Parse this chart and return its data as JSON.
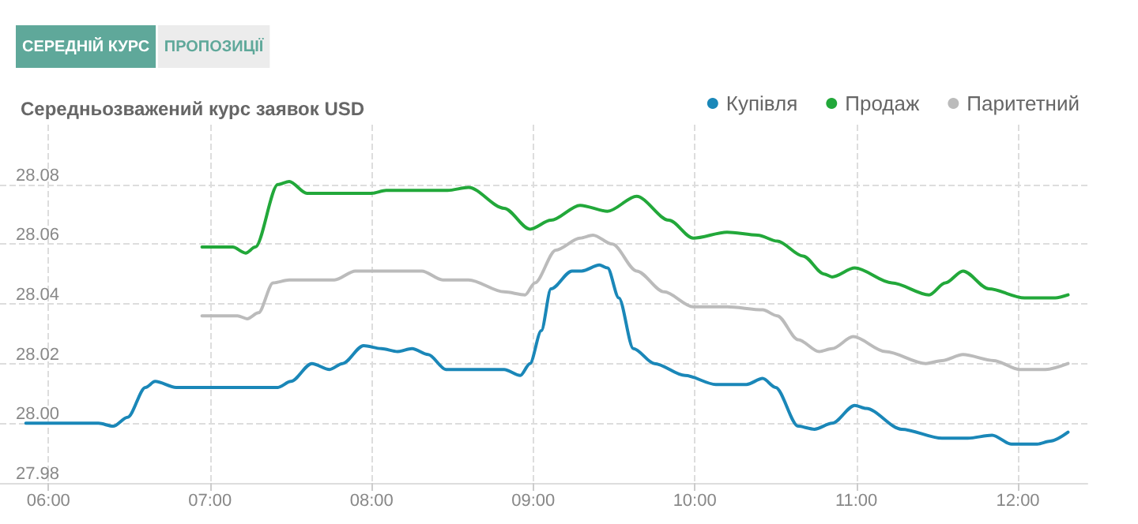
{
  "chart_data": {
    "type": "line",
    "title": "Середньозважений курс заявок USD",
    "annotations": [
      "СЕРЕДНІЙ КУРС",
      "ПРОПОЗИЦІЇ"
    ],
    "xlim": [
      5.7,
      12.43
    ],
    "xticks": [
      {
        "value": 6,
        "label": "06:00"
      },
      {
        "value": 7,
        "label": "07:00"
      },
      {
        "value": 8,
        "label": "08:00"
      },
      {
        "value": 9,
        "label": "09:00"
      },
      {
        "value": 10,
        "label": "10:00"
      },
      {
        "value": 11,
        "label": "11:00"
      },
      {
        "value": 12,
        "label": "12:00"
      }
    ],
    "ylim": [
      27.98,
      28.1
    ],
    "yticks": [
      {
        "value": 27.98,
        "label": "27.98"
      },
      {
        "value": 28,
        "label": "28.00"
      },
      {
        "value": 28.02,
        "label": "28.02"
      },
      {
        "value": 28.04,
        "label": "28.04"
      },
      {
        "value": 28.06,
        "label": "28.06"
      },
      {
        "value": 28.08,
        "label": "28.08"
      }
    ],
    "grid": true,
    "legend": "top right",
    "marker": "none",
    "line_style": "solid",
    "series": [
      {
        "name": "Купівля",
        "color": "#1a87b8",
        "x": [
          5.86,
          6.31,
          6.4,
          6.49,
          6.6,
          6.66,
          6.79,
          7.36,
          7.42,
          7.5,
          7.63,
          7.74,
          7.82,
          7.95,
          8.06,
          8.16,
          8.25,
          8.35,
          8.46,
          8.57,
          8.82,
          8.92,
          8.98,
          9.05,
          9.11,
          9.24,
          9.3,
          9.41,
          9.46,
          9.53,
          9.62,
          9.75,
          9.94,
          10.13,
          10.32,
          10.42,
          10.5,
          10.64,
          10.74,
          10.85,
          10.99,
          11.06,
          11.28,
          11.53,
          11.69,
          11.84,
          11.96,
          12.12,
          12.2,
          12.31
        ],
        "values": [
          28.0,
          28.0,
          27.999,
          28.002,
          28.012,
          28.014,
          28.012,
          28.012,
          28.012,
          28.014,
          28.02,
          28.018,
          28.02,
          28.026,
          28.025,
          28.024,
          28.025,
          28.023,
          28.018,
          28.018,
          28.018,
          28.016,
          28.02,
          28.031,
          28.045,
          28.051,
          28.051,
          28.053,
          28.052,
          28.042,
          28.025,
          28.02,
          28.016,
          28.013,
          28.013,
          28.015,
          28.012,
          27.999,
          27.998,
          28.0,
          28.006,
          28.005,
          27.998,
          27.995,
          27.995,
          27.996,
          27.993,
          27.993,
          27.994,
          27.997
        ]
      },
      {
        "name": "Продаж",
        "color": "#22a83a",
        "x": [
          6.95,
          7.14,
          7.22,
          7.28,
          7.42,
          7.49,
          7.6,
          7.68,
          8.0,
          8.09,
          8.47,
          8.6,
          8.82,
          8.98,
          9.11,
          9.29,
          9.46,
          9.64,
          9.84,
          9.99,
          10.2,
          10.39,
          10.51,
          10.67,
          10.8,
          10.85,
          10.99,
          11.22,
          11.45,
          11.55,
          11.66,
          11.82,
          12.04,
          12.23,
          12.31
        ],
        "values": [
          28.059,
          28.059,
          28.057,
          28.059,
          28.08,
          28.081,
          28.077,
          28.077,
          28.077,
          28.078,
          28.078,
          28.079,
          28.072,
          28.065,
          28.068,
          28.073,
          28.071,
          28.076,
          28.068,
          28.062,
          28.064,
          28.063,
          28.061,
          28.056,
          28.05,
          28.049,
          28.052,
          28.047,
          28.043,
          28.047,
          28.051,
          28.045,
          28.042,
          28.042,
          28.043
        ]
      },
      {
        "name": "Паритетний",
        "color": "#bbbbbb",
        "x": [
          6.95,
          7.17,
          7.23,
          7.3,
          7.39,
          7.49,
          7.77,
          7.9,
          8.31,
          8.44,
          8.6,
          8.82,
          8.95,
          9.01,
          9.14,
          9.29,
          9.37,
          9.49,
          9.64,
          9.81,
          9.99,
          10.2,
          10.42,
          10.51,
          10.64,
          10.77,
          10.85,
          10.98,
          11.18,
          11.43,
          11.53,
          11.66,
          11.85,
          12.01,
          12.17,
          12.31
        ],
        "values": [
          28.036,
          28.036,
          28.035,
          28.037,
          28.047,
          28.048,
          28.048,
          28.051,
          28.051,
          28.048,
          28.048,
          28.044,
          28.043,
          28.047,
          28.058,
          28.062,
          28.063,
          28.06,
          28.051,
          28.044,
          28.039,
          28.039,
          28.038,
          28.036,
          28.028,
          28.024,
          28.025,
          28.029,
          28.024,
          28.02,
          28.021,
          28.023,
          28.021,
          28.018,
          28.018,
          28.02
        ]
      }
    ]
  }
}
